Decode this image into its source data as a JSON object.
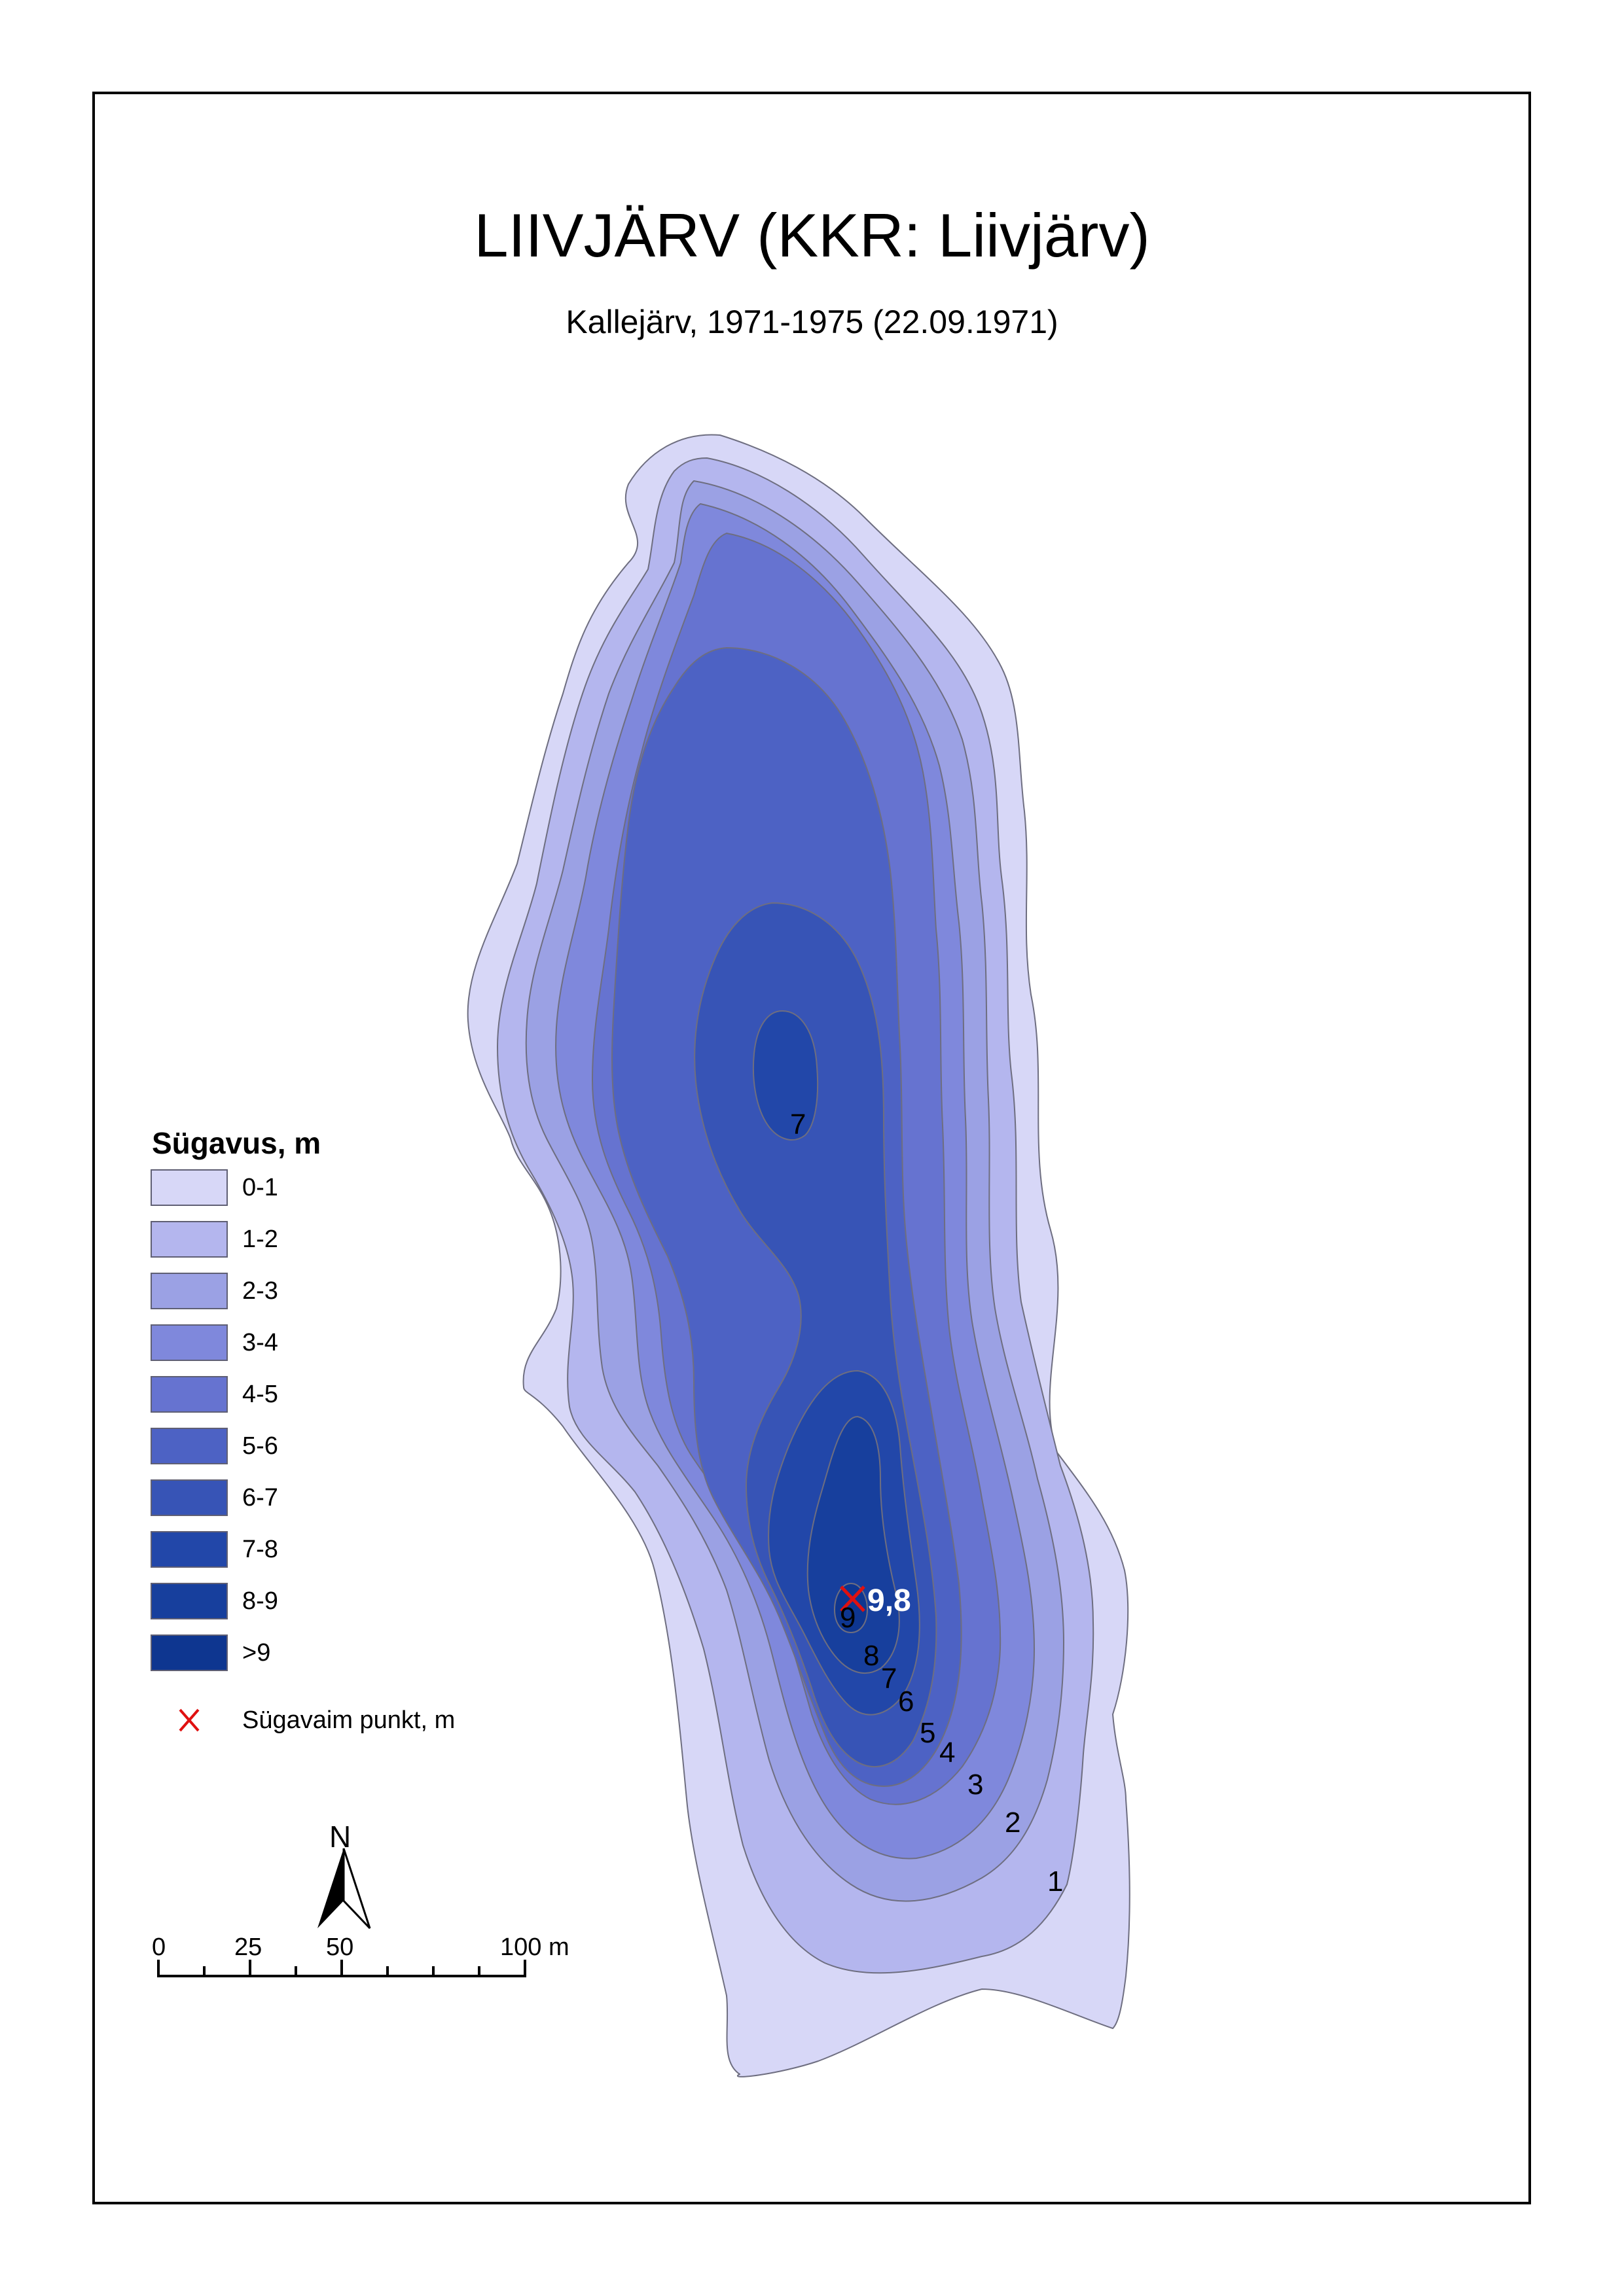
{
  "title": "LIIVJÄRV (KKR: Liivjärv)",
  "subtitle": "Kallejärv, 1971-1975 (22.09.1971)",
  "legend": {
    "title": "Sügavus, m",
    "classes": [
      {
        "label": "0-1",
        "color": "#d7d7f7"
      },
      {
        "label": "1-2",
        "color": "#b4b6ee"
      },
      {
        "label": "2-3",
        "color": "#9ba1e4"
      },
      {
        "label": "3-4",
        "color": "#7f88dc"
      },
      {
        "label": "4-5",
        "color": "#6673d0"
      },
      {
        "label": "5-6",
        "color": "#4d62c4"
      },
      {
        "label": "6-7",
        "color": "#3754b6"
      },
      {
        "label": "7-8",
        "color": "#2247a9"
      },
      {
        "label": "8-9",
        "color": "#173f9d"
      },
      {
        "label": ">9",
        "color": "#0e3690"
      }
    ],
    "deepest_point_label": "Sügavaim punkt, m",
    "deepest_point_color": "#e01010"
  },
  "deepest_point_value": "9,8",
  "contour_labels": [
    "7",
    "9",
    "8",
    "7",
    "6",
    "5",
    "4",
    "3",
    "2",
    "1"
  ],
  "north_arrow": {
    "label": "N"
  },
  "scale_bar": {
    "labels": [
      "0",
      "25",
      "50",
      "100 m"
    ]
  }
}
